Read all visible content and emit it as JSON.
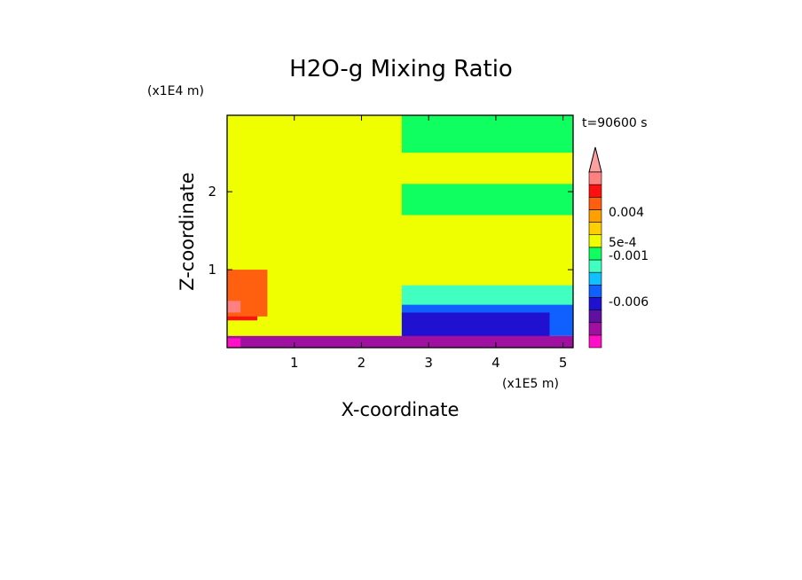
{
  "chart_data": {
    "type": "heatmap",
    "title": "H2O-g Mixing Ratio",
    "xlabel": "X-coordinate",
    "ylabel": "Z-coordinate",
    "x_scale_label": "(x1E5 m)",
    "y_scale_label": "(x1E4 m)",
    "time_label": "t=90600 s",
    "xlim": [
      0,
      5.15
    ],
    "ylim": [
      0,
      2.98
    ],
    "x_ticks": [
      1,
      2,
      3,
      4,
      5
    ],
    "y_ticks": [
      1,
      2
    ],
    "x_tick_labels": [
      "1",
      "2",
      "3",
      "4",
      "5"
    ],
    "y_tick_labels": [
      "1",
      "2"
    ],
    "colorbar": {
      "levels": [
        {
          "color": "#ff10c8",
          "value": -0.009
        },
        {
          "color": "#a010a0",
          "value": -0.007
        },
        {
          "color": "#6010a0",
          "value": -0.006
        },
        {
          "color": "#2010d0",
          "value": -0.003
        },
        {
          "color": "#1060ff",
          "value": -0.002
        },
        {
          "color": "#10c0ff",
          "value": -0.0015
        },
        {
          "color": "#40ffc0",
          "value": -0.001
        },
        {
          "color": "#10ff60",
          "value": -0.0005
        },
        {
          "color": "#f0ff00",
          "value": 0.0
        },
        {
          "color": "#ffd000",
          "value": 0.0005
        },
        {
          "color": "#ffa000",
          "value": 0.002
        },
        {
          "color": "#ff6010",
          "value": 0.004
        },
        {
          "color": "#ff1010",
          "value": 0.006
        },
        {
          "color": "#ff8080",
          "value": 0.008
        }
      ],
      "extend_color": "#ffa0a0",
      "labels": [
        "0.004",
        "5e-4",
        "-0.001",
        "-0.006"
      ]
    },
    "regions": [
      {
        "level": 8,
        "x0": 0.0,
        "x1": 5.15,
        "z0": 0.0,
        "z1": 2.98
      },
      {
        "level": 12,
        "x0": 0.0,
        "x1": 0.45,
        "z0": 0.35,
        "z1": 0.9
      },
      {
        "level": 11,
        "x0": 0.0,
        "x1": 0.6,
        "z0": 0.4,
        "z1": 1.0
      },
      {
        "level": 13,
        "x0": 0.0,
        "x1": 0.2,
        "z0": 0.45,
        "z1": 0.6
      },
      {
        "level": 7,
        "x0": 2.6,
        "x1": 5.15,
        "z0": 2.5,
        "z1": 2.98
      },
      {
        "level": 7,
        "x0": 2.6,
        "x1": 5.15,
        "z0": 1.7,
        "z1": 2.1
      },
      {
        "level": 6,
        "x0": 2.6,
        "x1": 5.15,
        "z0": 0.4,
        "z1": 0.8
      },
      {
        "level": 4,
        "x0": 2.6,
        "x1": 5.15,
        "z0": 0.15,
        "z1": 0.55
      },
      {
        "level": 3,
        "x0": 2.6,
        "x1": 4.8,
        "z0": 0.1,
        "z1": 0.45
      },
      {
        "level": 1,
        "x0": 0.0,
        "x1": 5.15,
        "z0": 0.0,
        "z1": 0.15
      },
      {
        "level": 0,
        "x0": 0.0,
        "x1": 0.2,
        "z0": 0.0,
        "z1": 0.12
      }
    ]
  }
}
